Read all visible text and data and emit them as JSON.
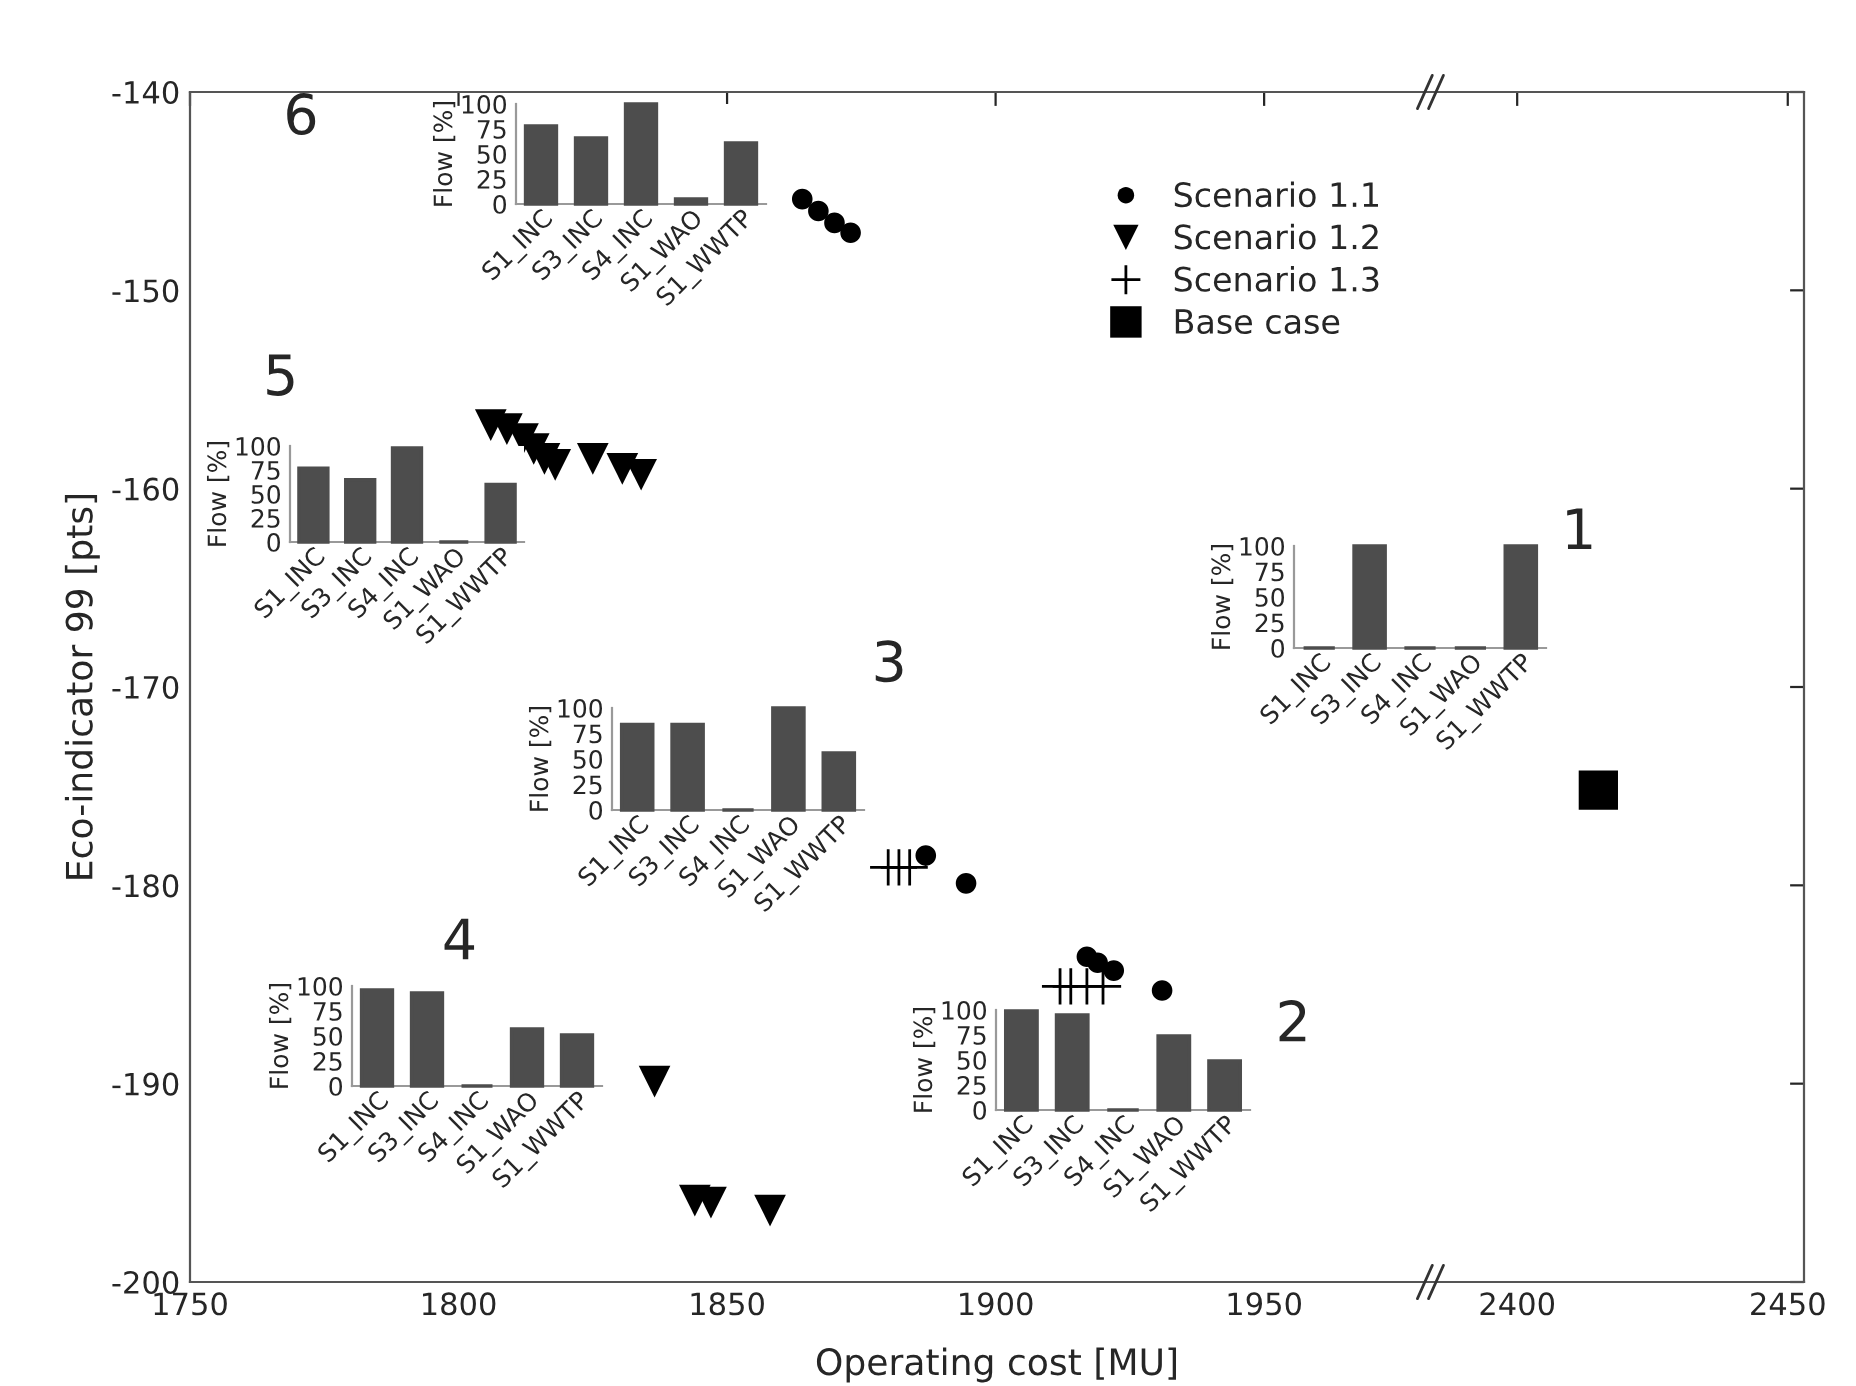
{
  "chart_data": [
    {
      "type": "scatter",
      "xlabel": "Operating cost [MU]",
      "ylabel": "Eco-indicator 99 [pts]",
      "xlim": [
        1750,
        1982
      ],
      "xticks": [
        1750,
        1800,
        1850,
        1900,
        1950
      ],
      "ylim": [
        -200,
        -140
      ],
      "yticks": [
        -200,
        -190,
        -180,
        -170,
        -160,
        -150,
        -140
      ],
      "grid": false,
      "legend": "top right",
      "series": [
        {
          "name": "Scenario 1.1",
          "color": "#000000",
          "marker": "circle",
          "x": [
            1864,
            1867,
            1870,
            1873,
            1887,
            1894.5,
            1917,
            1919,
            1922,
            1931
          ],
          "values": [
            -145.4,
            -146,
            -146.6,
            -147.1,
            -178.5,
            -179.9,
            -183.6,
            -183.9,
            -184.3,
            -185.3
          ]
        },
        {
          "name": "Scenario 1.2",
          "color": "#000000",
          "marker": "triangle",
          "x": [
            1806,
            1809,
            1812,
            1814,
            1816,
            1818,
            1825,
            1830.5,
            1834,
            1836.5,
            1844,
            1847,
            1857,
            1858
          ],
          "values": [
            -156.8,
            -157,
            -157.5,
            -158,
            -158.5,
            -158.8,
            -158.5,
            -159,
            -159.3,
            -189.9,
            -195.9,
            -196,
            null,
            -196.4
          ]
        },
        {
          "name": "Scenario 1.3",
          "color": "#000000",
          "marker": "cross",
          "x": [
            1880,
            1882,
            1884,
            1912,
            1914,
            1917,
            1920
          ],
          "values": [
            -179.1,
            -179.1,
            -179.1,
            -185.1,
            -185.1,
            -185.1,
            -185.1
          ]
        }
      ]
    },
    {
      "type": "scatter",
      "xlim": [
        2385,
        2453
      ],
      "xticks": [
        2400,
        2450
      ],
      "ylim": [
        -200,
        -140
      ],
      "tick_labels": "x",
      "series": [
        {
          "name": "Base case",
          "color": "#000000",
          "marker": "square",
          "x": [
            2415
          ],
          "values": [
            -175.2
          ]
        }
      ]
    },
    {
      "type": "bar",
      "ylabel": "Flow [%]",
      "categories": [
        "S1_INC",
        "S3_INC",
        "S4_INC",
        "S1_WAO",
        "S1_WWTP"
      ],
      "values": [
        78,
        66,
        100,
        5,
        61
      ],
      "color": "#4d4d4d",
      "ylim": [
        0,
        100
      ],
      "yticks": [
        0,
        25,
        50,
        75,
        100
      ],
      "annotations": [
        "6"
      ]
    },
    {
      "type": "bar",
      "ylabel": "Flow [%]",
      "categories": [
        "S1_INC",
        "S3_INC",
        "S4_INC",
        "S1_WAO",
        "S1_WWTP"
      ],
      "values": [
        77,
        65,
        98,
        0,
        60
      ],
      "color": "#4d4d4d",
      "ylim": [
        0,
        100
      ],
      "yticks": [
        0,
        25,
        50,
        75,
        100
      ],
      "annotations": [
        "5"
      ]
    },
    {
      "type": "bar",
      "ylabel": "Flow [%]",
      "categories": [
        "S1_INC",
        "S3_INC",
        "S4_INC",
        "S1_WAO",
        "S1_WWTP"
      ],
      "values": [
        0,
        100,
        0,
        0,
        100
      ],
      "color": "#4d4d4d",
      "ylim": [
        0,
        100
      ],
      "yticks": [
        0,
        25,
        50,
        75,
        100
      ],
      "annotations": [
        "1"
      ]
    },
    {
      "type": "bar",
      "ylabel": "Flow [%]",
      "categories": [
        "S1_INC",
        "S3_INC",
        "S4_INC",
        "S1_WAO",
        "S1_WWTP"
      ],
      "values": [
        84,
        84,
        0,
        100,
        56
      ],
      "color": "#4d4d4d",
      "ylim": [
        0,
        100
      ],
      "yticks": [
        0,
        25,
        50,
        75,
        100
      ],
      "annotations": [
        "3"
      ]
    },
    {
      "type": "bar",
      "ylabel": "Flow [%]",
      "categories": [
        "S1_INC",
        "S3_INC",
        "S4_INC",
        "S1_WAO",
        "S1_WWTP"
      ],
      "values": [
        96,
        93,
        0,
        57,
        51
      ],
      "color": "#4d4d4d",
      "ylim": [
        0,
        100
      ],
      "yticks": [
        0,
        25,
        50,
        75,
        100
      ],
      "annotations": [
        "4"
      ]
    },
    {
      "type": "bar",
      "ylabel": "Flow [%]",
      "categories": [
        "S1_INC",
        "S3_INC",
        "S4_INC",
        "S1_WAO",
        "S1_WWTP"
      ],
      "values": [
        99,
        95,
        0,
        74,
        49
      ],
      "color": "#4d4d4d",
      "ylim": [
        0,
        100
      ],
      "yticks": [
        0,
        25,
        50,
        75,
        100
      ],
      "annotations": [
        "2"
      ]
    }
  ]
}
